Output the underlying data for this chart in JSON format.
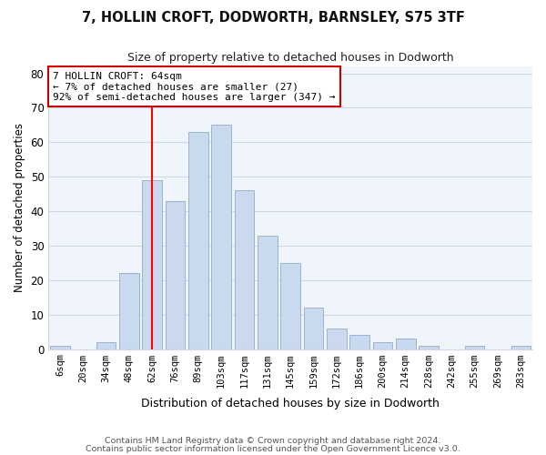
{
  "title": "7, HOLLIN CROFT, DODWORTH, BARNSLEY, S75 3TF",
  "subtitle": "Size of property relative to detached houses in Dodworth",
  "xlabel": "Distribution of detached houses by size in Dodworth",
  "ylabel": "Number of detached properties",
  "footer_lines": [
    "Contains HM Land Registry data © Crown copyright and database right 2024.",
    "Contains public sector information licensed under the Open Government Licence v3.0."
  ],
  "bin_labels": [
    "6sqm",
    "20sqm",
    "34sqm",
    "48sqm",
    "62sqm",
    "76sqm",
    "89sqm",
    "103sqm",
    "117sqm",
    "131sqm",
    "145sqm",
    "159sqm",
    "172sqm",
    "186sqm",
    "200sqm",
    "214sqm",
    "228sqm",
    "242sqm",
    "255sqm",
    "269sqm",
    "283sqm"
  ],
  "bar_values": [
    1,
    0,
    2,
    22,
    49,
    43,
    63,
    65,
    46,
    33,
    25,
    12,
    6,
    4,
    2,
    3,
    1,
    0,
    1,
    0,
    1
  ],
  "bar_color": "#c9d9ee",
  "bar_edge_color": "#9ab4d4",
  "vline_x_index": 4,
  "vline_color": "red",
  "annotation_text": "7 HOLLIN CROFT: 64sqm\n← 7% of detached houses are smaller (27)\n92% of semi-detached houses are larger (347) →",
  "annotation_box_color": "white",
  "annotation_box_edge_color": "#cc0000",
  "ylim": [
    0,
    82
  ],
  "yticks": [
    0,
    10,
    20,
    30,
    40,
    50,
    60,
    70,
    80
  ],
  "plot_bg_color": "#f0f5fc",
  "fig_bg_color": "#ffffff",
  "grid_color": "#d0d8e8"
}
